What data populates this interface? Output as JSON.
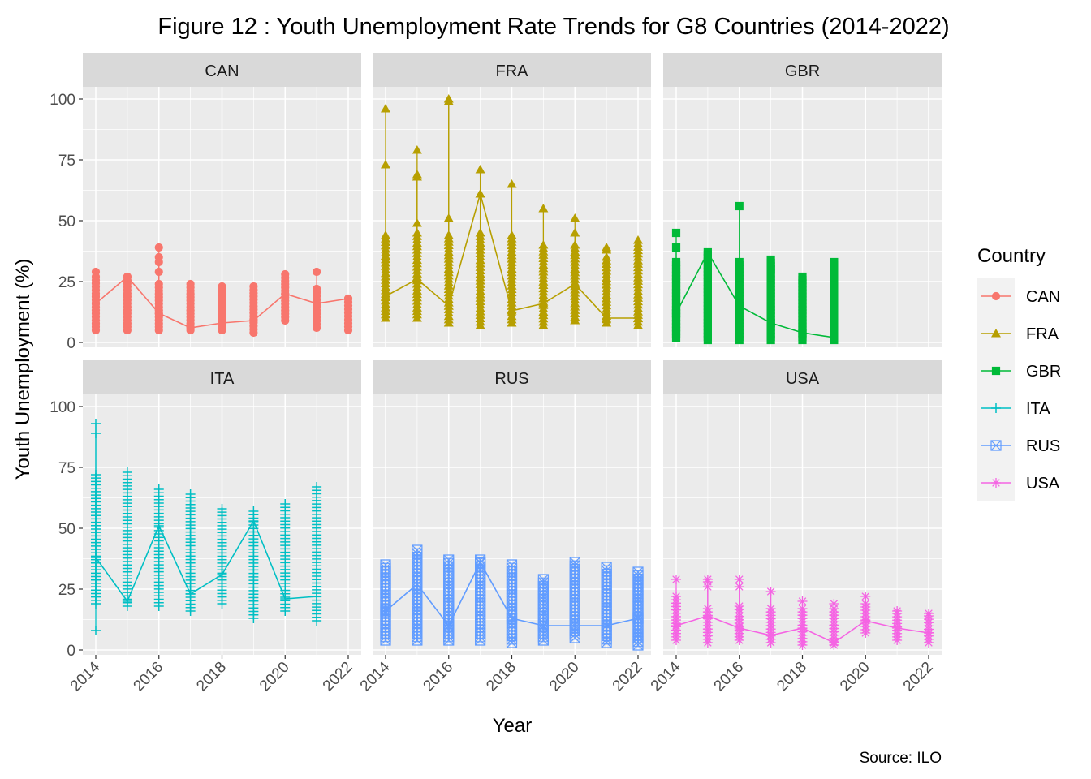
{
  "chart_data": {
    "type": "line",
    "title": "Figure 12 : Youth Unemployment Rate Trends for G8 Countries (2014-2022)",
    "xlabel": "Year",
    "ylabel": "Youth Unemployment (%)",
    "caption": "Source: ILO",
    "ylim": [
      0,
      100
    ],
    "xlim": [
      2014,
      2022
    ],
    "x_ticks": [
      "2014",
      "2016",
      "2018",
      "2020",
      "2022"
    ],
    "y_ticks": [
      "0",
      "25",
      "50",
      "75",
      "100"
    ],
    "grid": true,
    "legend": {
      "title": "Country",
      "position": "right"
    },
    "panels": [
      {
        "name": "CAN",
        "color": "#F8766D",
        "shape": "circle",
        "years": [
          2014,
          2015,
          2016,
          2017,
          2018,
          2019,
          2020,
          2021,
          2022
        ],
        "line": [
          16,
          27,
          12,
          6,
          8,
          9,
          20,
          16,
          18
        ],
        "range_low": [
          5,
          5,
          5,
          5,
          5,
          4,
          9,
          6,
          5
        ],
        "range_high": [
          27,
          27,
          24,
          24,
          23,
          23,
          28,
          22,
          18
        ],
        "outliers": [
          [
            2014,
            29
          ],
          [
            2016,
            39
          ],
          [
            2016,
            35
          ],
          [
            2016,
            33
          ],
          [
            2016,
            29
          ],
          [
            2021,
            29
          ]
        ]
      },
      {
        "name": "FRA",
        "color": "#B79F00",
        "shape": "triangle",
        "years": [
          2014,
          2015,
          2016,
          2017,
          2018,
          2019,
          2020,
          2021,
          2022
        ],
        "line": [
          19,
          26,
          15,
          61,
          13,
          16,
          24,
          10,
          10
        ],
        "range_low": [
          10,
          10,
          8,
          7,
          8,
          7,
          9,
          8,
          7
        ],
        "range_high": [
          44,
          45,
          44,
          45,
          44,
          40,
          40,
          35,
          42
        ],
        "outliers": [
          [
            2014,
            96
          ],
          [
            2014,
            73
          ],
          [
            2015,
            79
          ],
          [
            2015,
            69
          ],
          [
            2015,
            68
          ],
          [
            2015,
            49
          ],
          [
            2016,
            100
          ],
          [
            2016,
            99
          ],
          [
            2016,
            51
          ],
          [
            2017,
            71
          ],
          [
            2017,
            61
          ],
          [
            2018,
            65
          ],
          [
            2019,
            55
          ],
          [
            2020,
            51
          ],
          [
            2020,
            45
          ],
          [
            2021,
            39
          ],
          [
            2021,
            38
          ]
        ]
      },
      {
        "name": "GBR",
        "color": "#00BA38",
        "shape": "square",
        "years": [
          2014,
          2015,
          2016,
          2017,
          2018,
          2019
        ],
        "line": [
          12,
          37,
          15,
          8,
          4,
          2
        ],
        "range_low": [
          2,
          1,
          1,
          1,
          1,
          1
        ],
        "range_high": [
          33,
          36,
          33,
          34,
          27,
          33
        ],
        "outliers": [
          [
            2014,
            45
          ],
          [
            2014,
            39
          ],
          [
            2016,
            56
          ],
          [
            2017,
            30
          ],
          [
            2019,
            28
          ],
          [
            2019,
            24
          ]
        ]
      },
      {
        "name": "ITA",
        "color": "#00BFC4",
        "shape": "plus",
        "years": [
          2014,
          2015,
          2016,
          2017,
          2018,
          2019,
          2020,
          2021
        ],
        "line": [
          38,
          20,
          51,
          23,
          31,
          53,
          21,
          22
        ],
        "range_low": [
          19,
          18,
          18,
          16,
          19,
          13,
          16,
          12
        ],
        "range_high": [
          72,
          73,
          66,
          64,
          58,
          57,
          60,
          67
        ],
        "outliers": [
          [
            2014,
            93
          ],
          [
            2014,
            89
          ],
          [
            2014,
            8
          ]
        ]
      },
      {
        "name": "RUS",
        "color": "#619CFF",
        "shape": "boxx",
        "years": [
          2014,
          2015,
          2016,
          2017,
          2018,
          2019,
          2020,
          2021,
          2022
        ],
        "line": [
          16,
          27,
          10,
          36,
          13,
          10,
          10,
          10,
          13
        ],
        "range_low": [
          4,
          4,
          4,
          4,
          3,
          4,
          5,
          3,
          2
        ],
        "range_high": [
          35,
          41,
          37,
          37,
          35,
          29,
          36,
          34,
          32
        ],
        "outliers": []
      },
      {
        "name": "USA",
        "color": "#F564E3",
        "shape": "asterisk",
        "years": [
          2014,
          2015,
          2016,
          2017,
          2018,
          2019,
          2020,
          2021,
          2022
        ],
        "line": [
          10,
          14,
          9,
          6,
          9,
          3,
          12,
          9,
          7
        ],
        "range_low": [
          4,
          3,
          4,
          3,
          2,
          2,
          7,
          4,
          3
        ],
        "range_high": [
          22,
          17,
          18,
          17,
          17,
          17,
          19,
          15,
          14
        ],
        "outliers": [
          [
            2014,
            29
          ],
          [
            2015,
            29
          ],
          [
            2015,
            28
          ],
          [
            2015,
            26
          ],
          [
            2016,
            29
          ],
          [
            2016,
            26
          ],
          [
            2017,
            24
          ],
          [
            2018,
            20
          ],
          [
            2019,
            19
          ],
          [
            2020,
            22
          ],
          [
            2021,
            16
          ],
          [
            2022,
            15
          ]
        ]
      }
    ]
  }
}
